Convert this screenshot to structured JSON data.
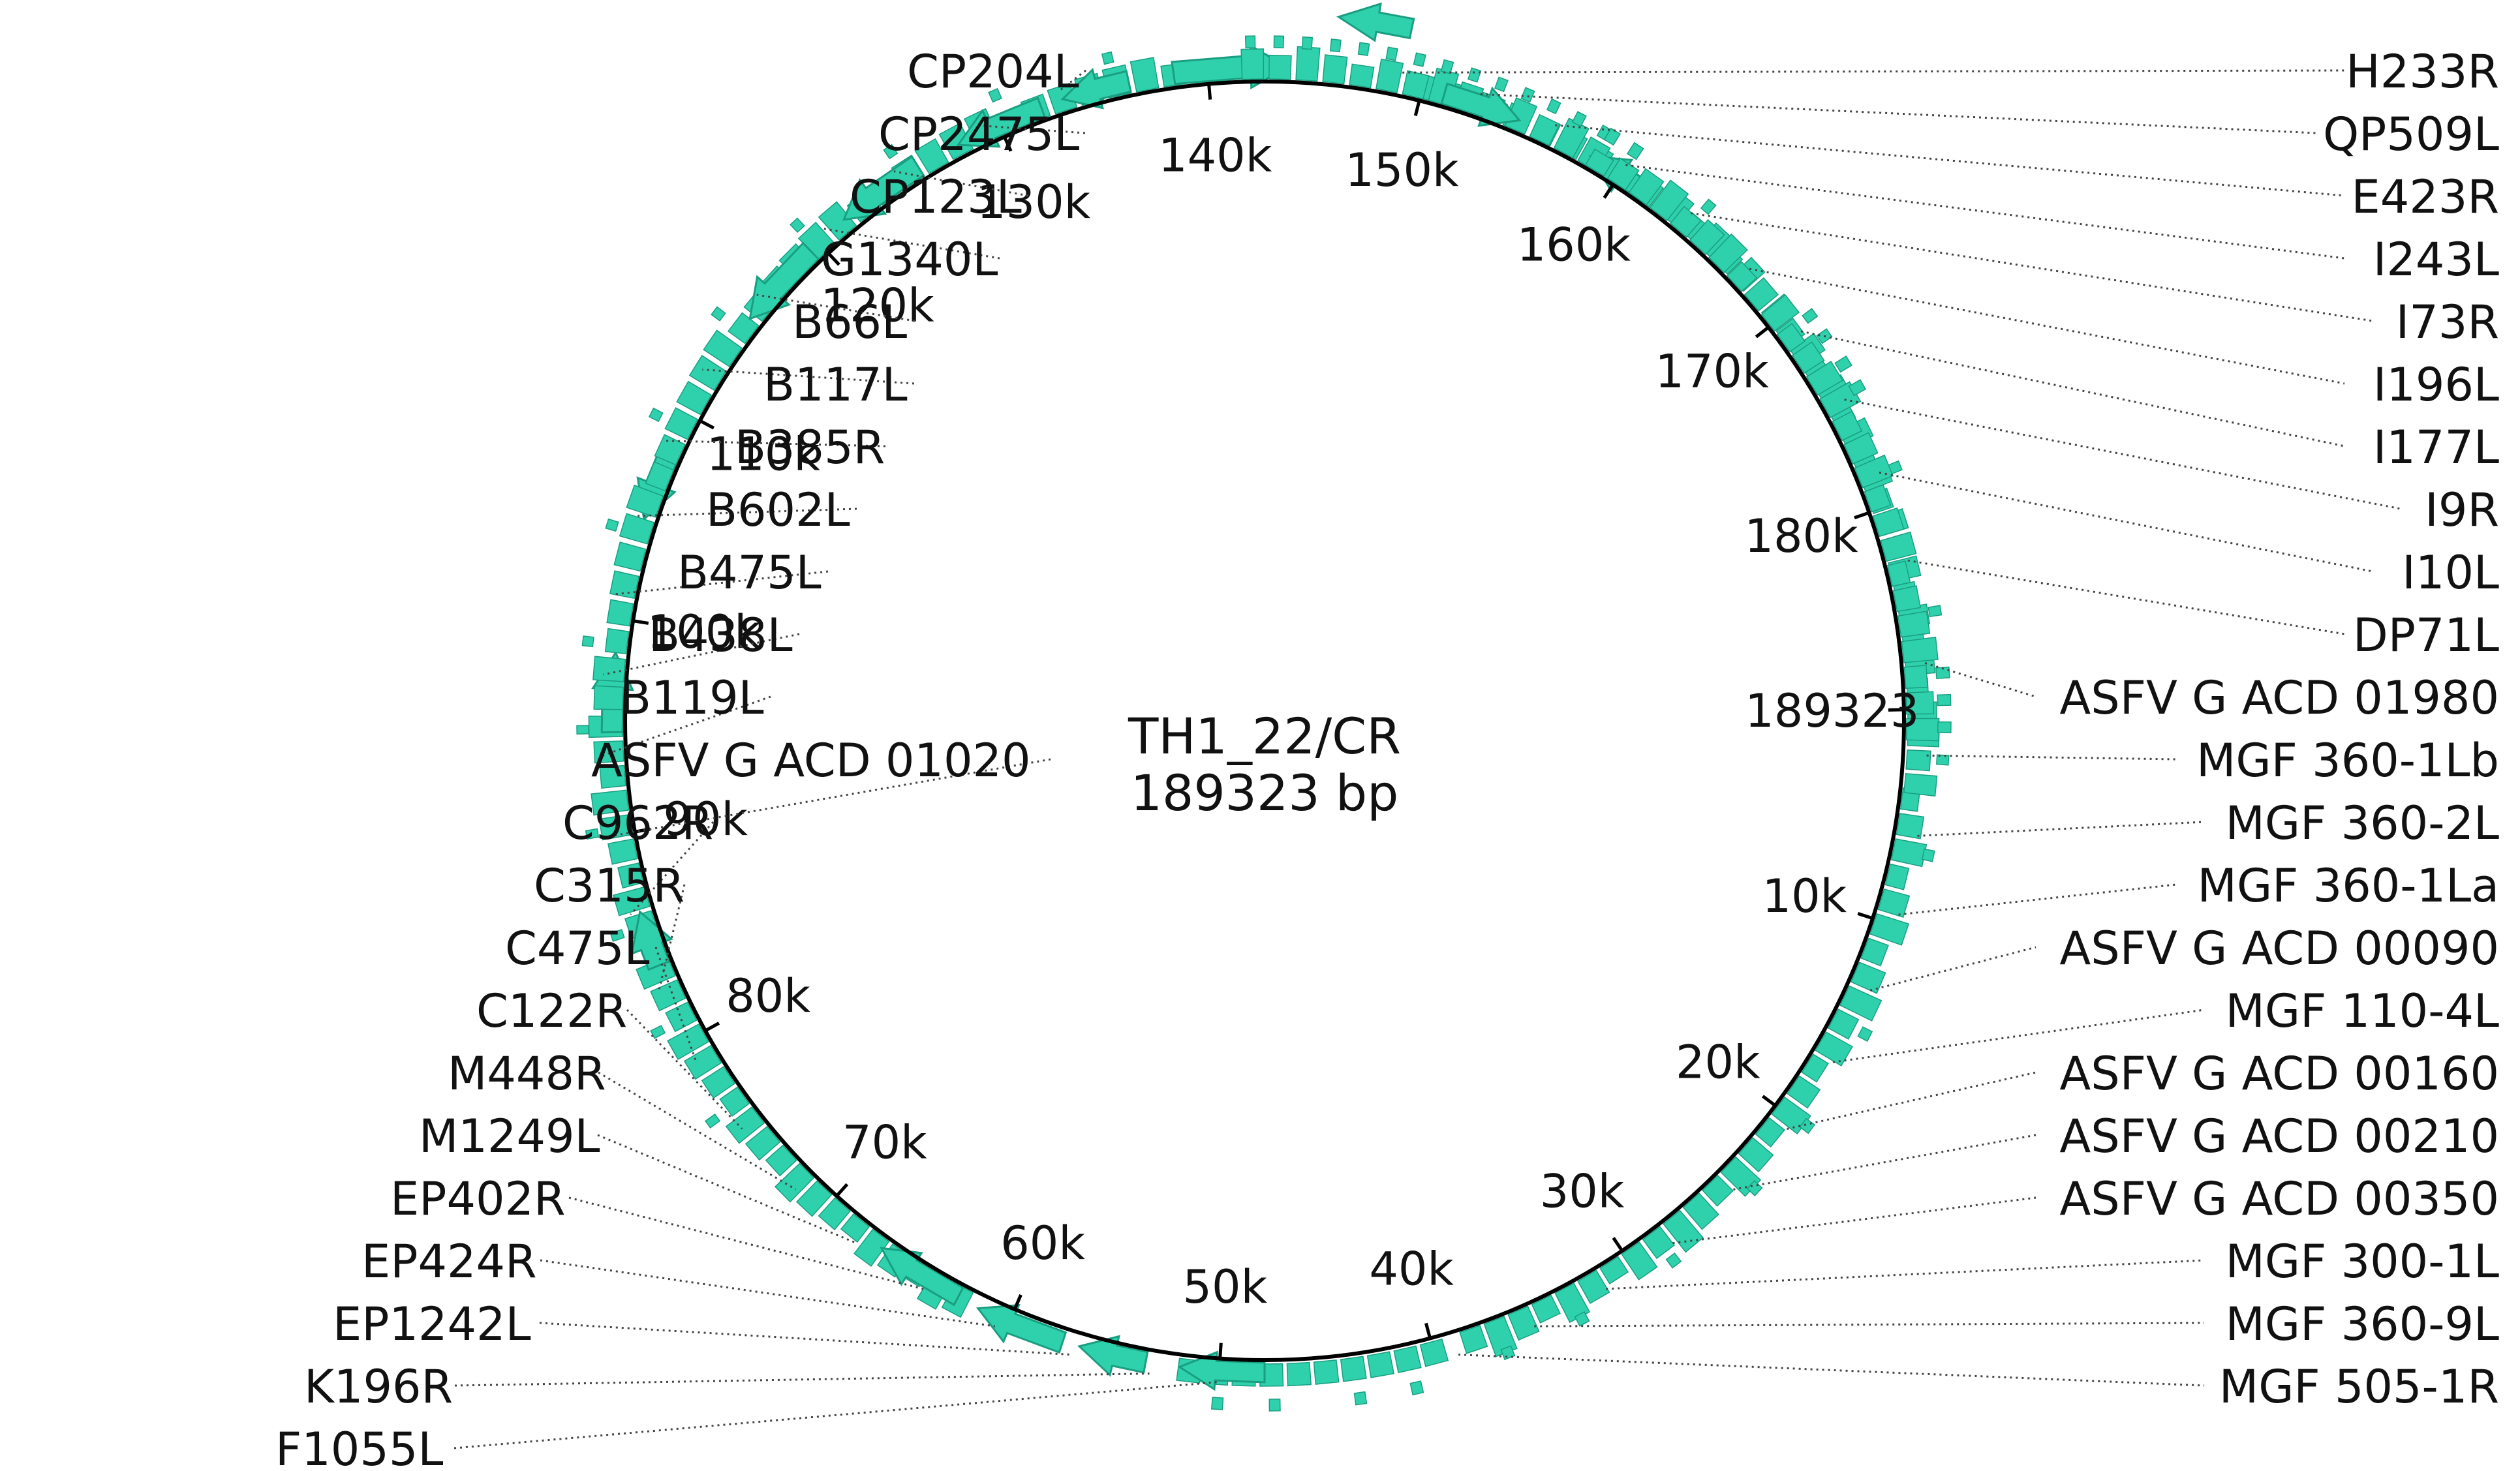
{
  "center": {
    "name": "TH1_22/CR",
    "length": "189323 bp"
  },
  "colors": {
    "feature": "#2fd1ad",
    "feature_stroke": "#199e80",
    "backbone": "#000000",
    "leader": "#444444",
    "text": "#111111"
  },
  "ticks": [
    "189323",
    "10k",
    "20k",
    "30k",
    "40k",
    "50k",
    "60k",
    "70k",
    "80k",
    "90k",
    "100k",
    "110k",
    "120k",
    "130k",
    "140k",
    "150k",
    "160k",
    "170k",
    "180k"
  ],
  "labels_right": [
    "H233R",
    "QP509L",
    "E423R",
    "I243L",
    "I73R",
    "I196L",
    "I177L",
    "I9R",
    "I10L",
    "DP71L",
    "ASFV G ACD 01980",
    "MGF 360-1Lb",
    "MGF 360-2L",
    "MGF 360-1La",
    "ASFV G ACD 00090",
    "MGF 110-4L",
    "ASFV G ACD 00160",
    "ASFV G ACD 00210",
    "ASFV G ACD 00350",
    "MGF 300-1L",
    "MGF 360-9L",
    "MGF 505-1R"
  ],
  "labels_left": [
    "CP204L",
    "CP2475L",
    "CP123L",
    "G1340L",
    "B66L",
    "B117L",
    "B385R",
    "B602L",
    "B475L",
    "B438L",
    "B119L",
    "ASFV G ACD 01020",
    "C962R",
    "C315R",
    "C475L",
    "C122R",
    "M448R",
    "M1249L",
    "EP402R",
    "EP424R",
    "EP1242L",
    "K196R",
    "F1055L"
  ]
}
